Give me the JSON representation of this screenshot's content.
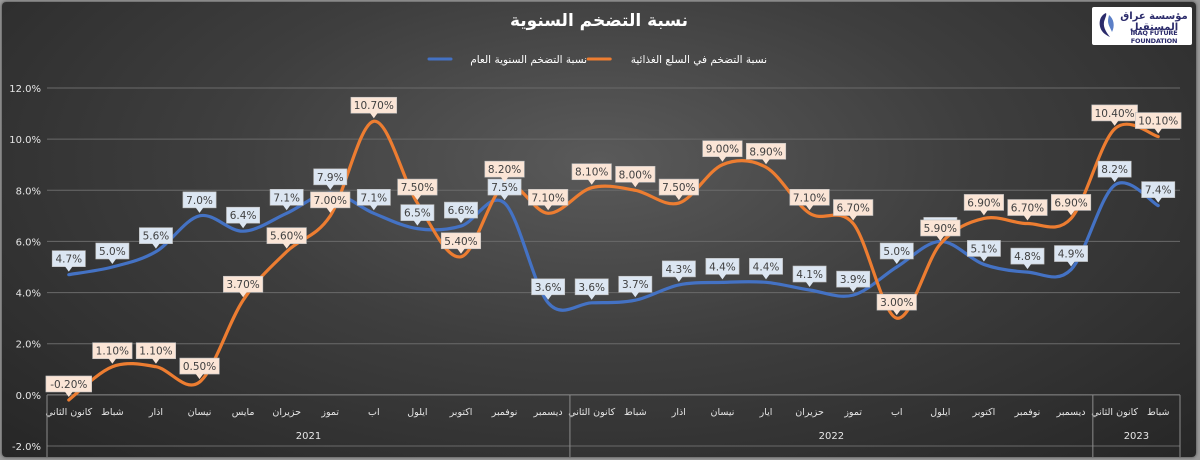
{
  "logo": {
    "arabic": "مؤسسة عراق المستقبل",
    "english": "IRAQ FUTURE FOUNDATION"
  },
  "chart_data": {
    "type": "line",
    "title": "نسبة التضخم السنوية",
    "legend_position": "top",
    "grid": true,
    "y_ticks": [
      "-2.0%",
      "0.0%",
      "2.0%",
      "4.0%",
      "6.0%",
      "8.0%",
      "10.0%",
      "12.0%"
    ],
    "ylim": [
      -2,
      12
    ],
    "categories": [
      "كانون الثاني",
      "شباط",
      "اذار",
      "نيسان",
      "مايس",
      "حزيران",
      "تموز",
      "اب",
      "ايلول",
      "اكتوبر",
      "نوفمبر",
      "ديسمبر",
      "كانون الثاني",
      "شباط",
      "اذار",
      "نيسان",
      "ايار",
      "حزيران",
      "تموز",
      "اب",
      "ايلول",
      "اكتوبر",
      "نوفمبر",
      "ديسمبر",
      "كانون الثاني",
      "شباط"
    ],
    "year_groups": [
      {
        "label": "2021",
        "start": 0,
        "count": 12
      },
      {
        "label": "2022",
        "start": 12,
        "count": 12
      },
      {
        "label": "2023",
        "start": 24,
        "count": 2
      }
    ],
    "series": [
      {
        "name": "نسبة التضخم السنوية العام",
        "color": "#4472c4",
        "values": [
          4.7,
          5.0,
          5.6,
          7.0,
          6.4,
          7.1,
          7.9,
          7.1,
          6.5,
          6.6,
          7.5,
          3.6,
          3.6,
          3.7,
          4.3,
          4.4,
          4.4,
          4.1,
          3.9,
          5.0,
          6.0,
          5.1,
          4.8,
          4.9,
          8.2,
          7.4
        ],
        "labels": [
          "4.7%",
          "5.0%",
          "5.6%",
          "7.0%",
          "6.4%",
          "7.1%",
          "7.9%",
          "7.1%",
          "6.5%",
          "6.6%",
          "7.5%",
          "3.6%",
          "3.6%",
          "3.7%",
          "4.3%",
          "4.4%",
          "4.4%",
          "4.1%",
          "3.9%",
          "5.0%",
          "6.0%",
          "5.1%",
          "4.8%",
          "4.9%",
          "8.2%",
          "7.4%"
        ],
        "label_color": "#dce6f2"
      },
      {
        "name": "نسبة التضخم في السلع الغذائية",
        "color": "#ed7d31",
        "values": [
          -0.2,
          1.1,
          1.1,
          0.5,
          3.7,
          5.6,
          7.0,
          10.7,
          7.5,
          5.4,
          8.2,
          7.1,
          8.1,
          8.0,
          7.5,
          9.0,
          8.9,
          7.1,
          6.7,
          3.0,
          5.9,
          6.9,
          6.7,
          6.9,
          10.4,
          10.1
        ],
        "labels": [
          "-0.20%",
          "1.10%",
          "1.10%",
          "0.50%",
          "3.70%",
          "5.60%",
          "7.00%",
          "10.70%",
          "7.50%",
          "5.40%",
          "8.20%",
          "7.10%",
          "8.10%",
          "8.00%",
          "7.50%",
          "9.00%",
          "8.90%",
          "7.10%",
          "6.70%",
          "3.00%",
          "5.90%",
          "6.90%",
          "6.70%",
          "6.90%",
          "10.40%",
          "10.10%"
        ],
        "label_color": "#fbe5d6"
      }
    ]
  }
}
